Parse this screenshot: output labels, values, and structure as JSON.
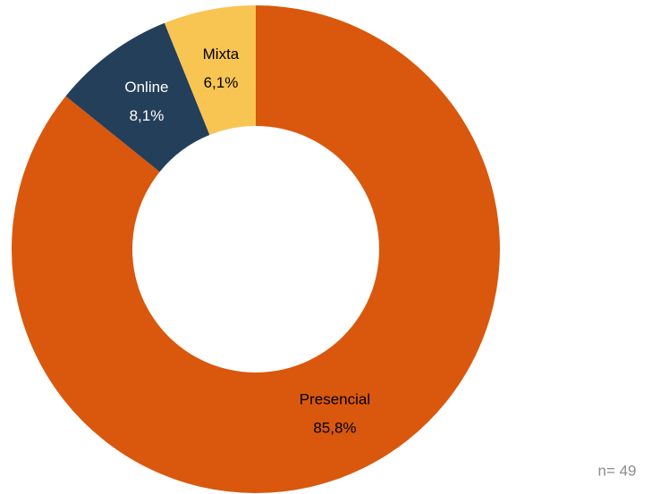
{
  "chart_data": {
    "type": "donut",
    "categories": [
      "Presencial",
      "Online",
      "Mixta"
    ],
    "values": [
      85.8,
      8.1,
      6.1
    ],
    "value_labels": [
      "85,8%",
      "8,1%",
      "6,1%"
    ],
    "colors": [
      "#d9580d",
      "#243f5a",
      "#f8c553"
    ],
    "annotation": "n= 49"
  }
}
